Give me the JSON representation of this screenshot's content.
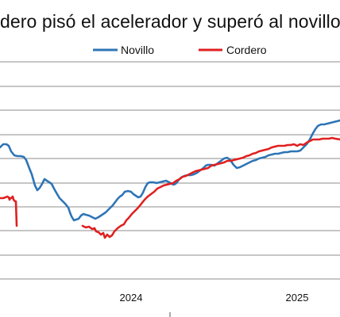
{
  "chart_data": {
    "type": "line",
    "title": "dero pisó el acelerador y superó al novillo",
    "x_tick_labels": [
      "2024",
      "2025"
    ],
    "legend_position": "top-center",
    "grid": "horizontal",
    "series": [
      {
        "name": "Novillo",
        "color": "#2E75B6",
        "points": [
          [
            0,
            186
          ],
          [
            4,
            182
          ],
          [
            8,
            182
          ],
          [
            11,
            184
          ],
          [
            14,
            191
          ],
          [
            18,
            196
          ],
          [
            22,
            197
          ],
          [
            26,
            197
          ],
          [
            30,
            198
          ],
          [
            33,
            202
          ],
          [
            36,
            210
          ],
          [
            40,
            220
          ],
          [
            44,
            234
          ],
          [
            47,
            240
          ],
          [
            50,
            237
          ],
          [
            53,
            232
          ],
          [
            56,
            226
          ],
          [
            59,
            228
          ],
          [
            62,
            230
          ],
          [
            65,
            232
          ],
          [
            68,
            238
          ],
          [
            72,
            245
          ],
          [
            75,
            250
          ],
          [
            78,
            253
          ],
          [
            82,
            257
          ],
          [
            86,
            262
          ],
          [
            88,
            268
          ],
          [
            90,
            273
          ],
          [
            93,
            278
          ],
          [
            96,
            277
          ],
          [
            99,
            276
          ],
          [
            102,
            272
          ],
          [
            105,
            270
          ],
          [
            108,
            271
          ],
          [
            112,
            272
          ],
          [
            116,
            274
          ],
          [
            120,
            276
          ],
          [
            124,
            274
          ],
          [
            127,
            272
          ],
          [
            130,
            270
          ],
          [
            133,
            268
          ],
          [
            136,
            265
          ],
          [
            139,
            262
          ],
          [
            142,
            259
          ],
          [
            145,
            255
          ],
          [
            148,
            251
          ],
          [
            151,
            248
          ],
          [
            154,
            246
          ],
          [
            157,
            242
          ],
          [
            161,
            241
          ],
          [
            165,
            242
          ],
          [
            168,
            245
          ],
          [
            171,
            247
          ],
          [
            174,
            249
          ],
          [
            177,
            248
          ],
          [
            180,
            243
          ],
          [
            183,
            236
          ],
          [
            186,
            231
          ],
          [
            189,
            230
          ],
          [
            193,
            230
          ],
          [
            197,
            231
          ],
          [
            201,
            230
          ],
          [
            205,
            229
          ],
          [
            209,
            228
          ],
          [
            213,
            230
          ],
          [
            216,
            232
          ],
          [
            219,
            233
          ],
          [
            222,
            231
          ],
          [
            225,
            227
          ],
          [
            228,
            224
          ],
          [
            232,
            222
          ],
          [
            236,
            221
          ],
          [
            240,
            221
          ],
          [
            244,
            220
          ],
          [
            248,
            218
          ],
          [
            252,
            215
          ],
          [
            256,
            212
          ],
          [
            259,
            209
          ],
          [
            262,
            208
          ],
          [
            266,
            208
          ],
          [
            270,
            209
          ],
          [
            274,
            206
          ],
          [
            278,
            203
          ],
          [
            282,
            200
          ],
          [
            286,
            199
          ],
          [
            290,
            202
          ],
          [
            294,
            208
          ],
          [
            298,
            212
          ],
          [
            302,
            211
          ],
          [
            306,
            209
          ],
          [
            310,
            207
          ],
          [
            314,
            205
          ],
          [
            318,
            203
          ],
          [
            322,
            202
          ],
          [
            326,
            200
          ],
          [
            330,
            199
          ],
          [
            334,
            198
          ],
          [
            338,
            196
          ],
          [
            342,
            195
          ],
          [
            346,
            194
          ],
          [
            350,
            194
          ],
          [
            354,
            193
          ],
          [
            358,
            192
          ],
          [
            362,
            192
          ],
          [
            366,
            191
          ],
          [
            370,
            191
          ],
          [
            374,
            191
          ],
          [
            378,
            190
          ],
          [
            382,
            186
          ],
          [
            386,
            182
          ],
          [
            390,
            176
          ],
          [
            394,
            168
          ],
          [
            397,
            163
          ],
          [
            400,
            159
          ],
          [
            404,
            157
          ],
          [
            408,
            157
          ],
          [
            412,
            156
          ],
          [
            416,
            155
          ],
          [
            420,
            154
          ],
          [
            424,
            153
          ],
          [
            428,
            152
          ]
        ]
      },
      {
        "name": "Cordero",
        "color": "#E02020",
        "points": [
          [
            0,
            250
          ],
          [
            4,
            250
          ],
          [
            7,
            249
          ],
          [
            9,
            248
          ],
          [
            11,
            249
          ],
          [
            12,
            252
          ],
          [
            13,
            250
          ],
          [
            14,
            250
          ],
          [
            15,
            249
          ],
          [
            16,
            248
          ],
          [
            17,
            252
          ],
          [
            18,
            253
          ],
          [
            19,
            254
          ],
          [
            20,
            254
          ],
          [
            21,
            285
          ],
          [
            40,
            284
          ],
          [
            60,
            284
          ],
          [
            80,
            284
          ],
          [
            97,
            284
          ],
          [
            104,
            285
          ],
          [
            108,
            287
          ],
          [
            112,
            286
          ],
          [
            116,
            289
          ],
          [
            119,
            288
          ],
          [
            121,
            292
          ],
          [
            124,
            293
          ],
          [
            127,
            296
          ],
          [
            130,
            294
          ],
          [
            132,
            300
          ],
          [
            135,
            296
          ],
          [
            138,
            299
          ],
          [
            141,
            297
          ],
          [
            144,
            292
          ],
          [
            148,
            288
          ],
          [
            152,
            285
          ],
          [
            156,
            283
          ],
          [
            159,
            278
          ],
          [
            162,
            275
          ],
          [
            166,
            270
          ],
          [
            170,
            266
          ],
          [
            174,
            262
          ],
          [
            178,
            257
          ],
          [
            182,
            252
          ],
          [
            186,
            248
          ],
          [
            190,
            245
          ],
          [
            194,
            242
          ],
          [
            198,
            238
          ],
          [
            202,
            236
          ],
          [
            206,
            234
          ],
          [
            210,
            233
          ],
          [
            214,
            232
          ],
          [
            218,
            231
          ],
          [
            222,
            228
          ],
          [
            226,
            226
          ],
          [
            230,
            223
          ],
          [
            234,
            222
          ],
          [
            238,
            220
          ],
          [
            242,
            218
          ],
          [
            246,
            216
          ],
          [
            250,
            215
          ],
          [
            254,
            214
          ],
          [
            258,
            213
          ],
          [
            262,
            212
          ],
          [
            266,
            209
          ],
          [
            270,
            208
          ],
          [
            274,
            207
          ],
          [
            278,
            206
          ],
          [
            282,
            205
          ],
          [
            286,
            203
          ],
          [
            290,
            203
          ],
          [
            294,
            202
          ],
          [
            298,
            201
          ],
          [
            302,
            200
          ],
          [
            306,
            199
          ],
          [
            310,
            197
          ],
          [
            314,
            196
          ],
          [
            318,
            194
          ],
          [
            322,
            193
          ],
          [
            326,
            191
          ],
          [
            330,
            190
          ],
          [
            334,
            189
          ],
          [
            338,
            188
          ],
          [
            342,
            186
          ],
          [
            346,
            185
          ],
          [
            350,
            184
          ],
          [
            354,
            184
          ],
          [
            358,
            184
          ],
          [
            362,
            183
          ],
          [
            366,
            183
          ],
          [
            370,
            182
          ],
          [
            374,
            184
          ],
          [
            378,
            182
          ],
          [
            382,
            183
          ],
          [
            386,
            180
          ],
          [
            390,
            178
          ],
          [
            394,
            176
          ],
          [
            398,
            176
          ],
          [
            402,
            176
          ],
          [
            406,
            175
          ],
          [
            410,
            175
          ],
          [
            414,
            175
          ],
          [
            418,
            174
          ],
          [
            422,
            175
          ],
          [
            428,
            176
          ]
        ]
      }
    ]
  }
}
